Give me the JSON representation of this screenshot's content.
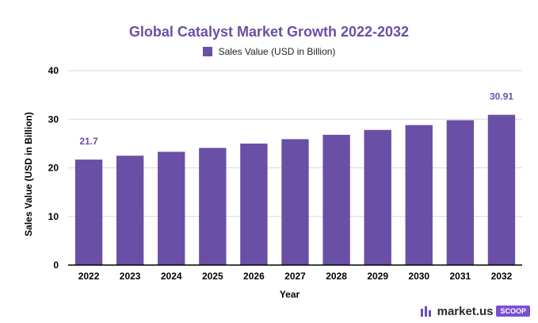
{
  "chart_data": {
    "type": "bar",
    "title": "Global Catalyst Market Growth 2022-2032",
    "xlabel": "Year",
    "ylabel": "Sales Value (USD in Billion)",
    "categories": [
      "2022",
      "2023",
      "2024",
      "2025",
      "2026",
      "2027",
      "2028",
      "2029",
      "2030",
      "2031",
      "2032"
    ],
    "series": [
      {
        "name": "Sales Value (USD in Billion)",
        "values": [
          21.7,
          22.5,
          23.3,
          24.1,
          25.0,
          25.9,
          26.8,
          27.8,
          28.8,
          29.8,
          30.91
        ],
        "color": "#6a4fa6"
      }
    ],
    "data_labels": [
      {
        "category": "2022",
        "text": "21.7"
      },
      {
        "category": "2032",
        "text": "30.91"
      }
    ],
    "ylim": [
      0,
      40
    ],
    "yticks": [
      0,
      10,
      20,
      30,
      40
    ],
    "grid": true,
    "legend_position": "top"
  },
  "logo": {
    "text": "market.us",
    "badge": "SCOOP"
  },
  "colors": {
    "title": "#6b4fa6",
    "bar": "#6a4fa6",
    "grid": "#d9d9d9",
    "axis": "#000000"
  }
}
